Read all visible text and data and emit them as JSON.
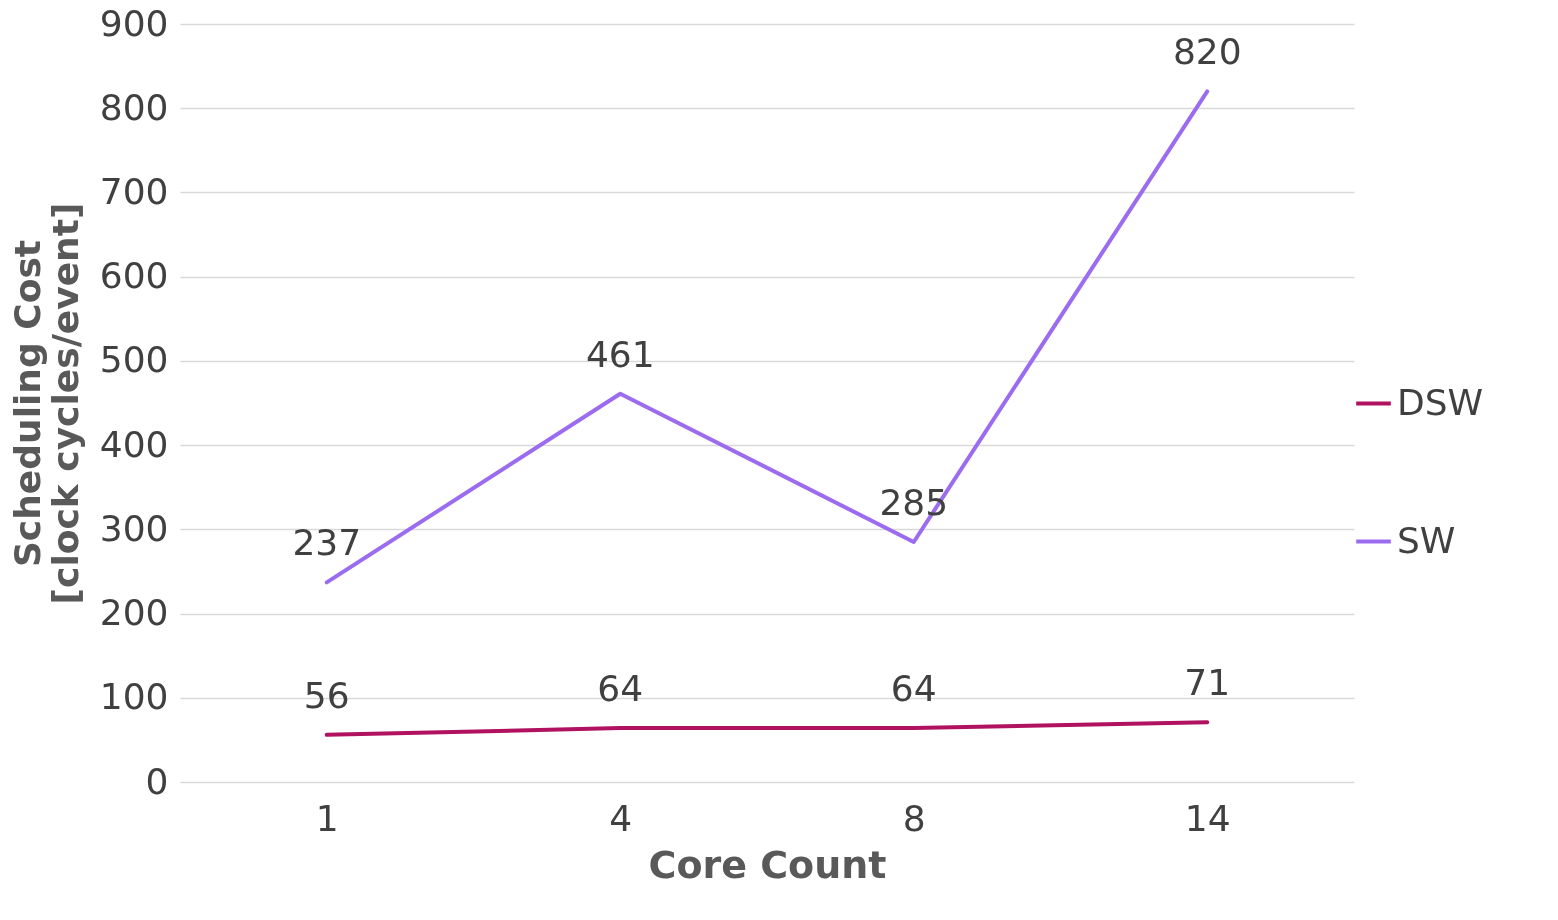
{
  "chart_data": {
    "type": "line",
    "xlabel": "Core Count",
    "ylabel": "Scheduling Cost [clock cycles/event]",
    "categories": [
      "1",
      "4",
      "8",
      "14"
    ],
    "series": [
      {
        "name": "DSW",
        "color": "#b0125f",
        "values": [
          56,
          64,
          64,
          71
        ]
      },
      {
        "name": "SW",
        "color": "#9b6cf0",
        "values": [
          237,
          461,
          285,
          820
        ]
      }
    ],
    "ylim": [
      0,
      900
    ],
    "yticks": [
      0,
      100,
      200,
      300,
      400,
      500,
      600,
      700,
      800,
      900
    ],
    "grid": "y",
    "legend": "right",
    "data_labels": true,
    "marker": "none",
    "line_style": "solid"
  }
}
